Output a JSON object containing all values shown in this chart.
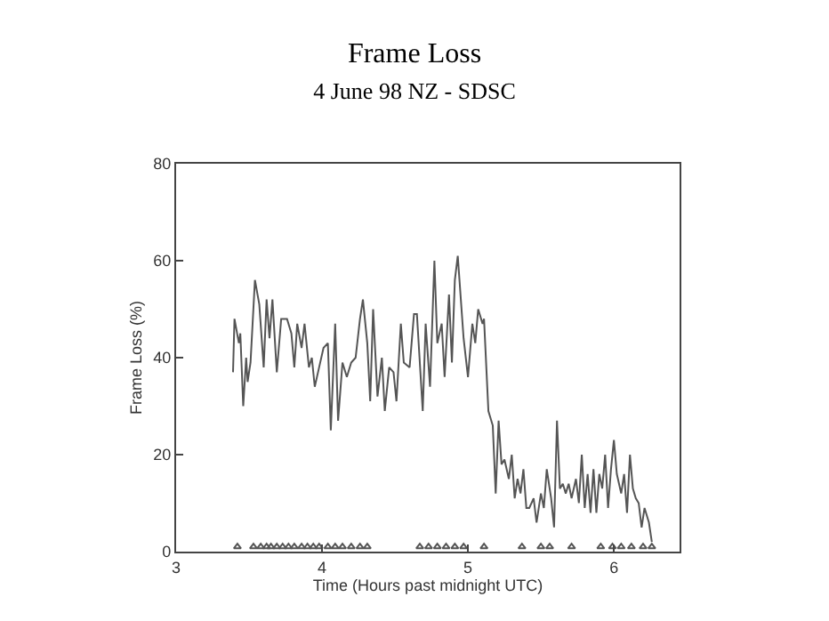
{
  "chart_data": {
    "type": "line",
    "title": "Frame Loss",
    "subtitle": "4 June 98 NZ - SDSC",
    "xlabel": "Time (Hours past midnight UTC)",
    "ylabel": "Frame Loss (%)",
    "xlim": [
      3,
      6.45
    ],
    "xticks": [
      3,
      4,
      5,
      6
    ],
    "ylim": [
      0,
      80
    ],
    "yticks": [
      0,
      20,
      40,
      60,
      80
    ],
    "series": [
      {
        "color": "#555555",
        "marker": "none",
        "line_style": "solid",
        "x": [
          3.39,
          3.4,
          3.43,
          3.44,
          3.46,
          3.48,
          3.49,
          3.51,
          3.54,
          3.57,
          3.6,
          3.62,
          3.64,
          3.66,
          3.69,
          3.72,
          3.76,
          3.79,
          3.81,
          3.83,
          3.86,
          3.88,
          3.91,
          3.93,
          3.95,
          3.98,
          4.01,
          4.04,
          4.06,
          4.09,
          4.11,
          4.14,
          4.17,
          4.2,
          4.23,
          4.26,
          4.28,
          4.31,
          4.33,
          4.35,
          4.38,
          4.41,
          4.43,
          4.46,
          4.49,
          4.51,
          4.54,
          4.56,
          4.6,
          4.63,
          4.65,
          4.69,
          4.71,
          4.74,
          4.77,
          4.79,
          4.82,
          4.84,
          4.87,
          4.89,
          4.91,
          4.93,
          4.97,
          5.0,
          5.03,
          5.05,
          5.07,
          5.1,
          5.11,
          5.14,
          5.17,
          5.19,
          5.21,
          5.23,
          5.25,
          5.28,
          5.3,
          5.32,
          5.34,
          5.36,
          5.38,
          5.4,
          5.42,
          5.45,
          5.47,
          5.5,
          5.52,
          5.54,
          5.57,
          5.59,
          5.61,
          5.63,
          5.65,
          5.67,
          5.69,
          5.71,
          5.74,
          5.76,
          5.78,
          5.8,
          5.82,
          5.84,
          5.86,
          5.88,
          5.9,
          5.92,
          5.94,
          5.96,
          5.98,
          6.0,
          6.02,
          6.05,
          6.07,
          6.09,
          6.11,
          6.13,
          6.15,
          6.17,
          6.19,
          6.21,
          6.24,
          6.26
        ],
        "values": [
          37,
          48,
          43,
          45,
          30,
          40,
          35,
          39,
          56,
          51,
          38,
          52,
          44,
          52,
          37,
          48,
          48,
          45,
          38,
          47,
          42,
          47,
          38,
          40,
          34,
          38,
          42,
          43,
          25,
          47,
          27,
          39,
          36,
          39,
          40,
          48,
          52,
          43,
          31,
          50,
          32,
          40,
          29,
          38,
          37,
          31,
          47,
          39,
          38,
          49,
          49,
          29,
          47,
          34,
          60,
          43,
          47,
          36,
          53,
          39,
          56,
          61,
          44,
          36,
          47,
          43,
          50,
          47,
          48,
          29,
          26,
          12,
          27,
          18,
          19,
          15,
          20,
          11,
          15,
          12,
          17,
          9,
          9,
          11,
          6,
          12,
          9,
          17,
          11,
          5,
          27,
          13,
          14,
          12,
          14,
          11,
          15,
          10,
          20,
          9,
          16,
          8,
          17,
          8,
          16,
          13,
          20,
          9,
          17,
          23,
          16,
          12,
          16,
          8,
          20,
          13,
          11,
          10,
          5,
          9,
          6,
          2
        ]
      },
      {
        "type": "scatter",
        "color": "#555555",
        "marker": "triangle",
        "x": [
          3.42,
          3.53,
          3.58,
          3.62,
          3.65,
          3.69,
          3.73,
          3.77,
          3.81,
          3.86,
          3.9,
          3.94,
          3.98,
          4.04,
          4.09,
          4.14,
          4.2,
          4.26,
          4.31,
          4.67,
          4.73,
          4.79,
          4.85,
          4.91,
          4.97,
          5.11,
          5.37,
          5.5,
          5.56,
          5.71,
          5.91,
          5.99,
          6.05,
          6.12,
          6.2,
          6.26
        ],
        "values": [
          1,
          1,
          1,
          1,
          1,
          1,
          1,
          1,
          1,
          1,
          1,
          1,
          1,
          1,
          1,
          1,
          1,
          1,
          1,
          1,
          1,
          1,
          1,
          1,
          1,
          1,
          1,
          1,
          1,
          1,
          1,
          1,
          1,
          1,
          1,
          1
        ]
      }
    ]
  }
}
